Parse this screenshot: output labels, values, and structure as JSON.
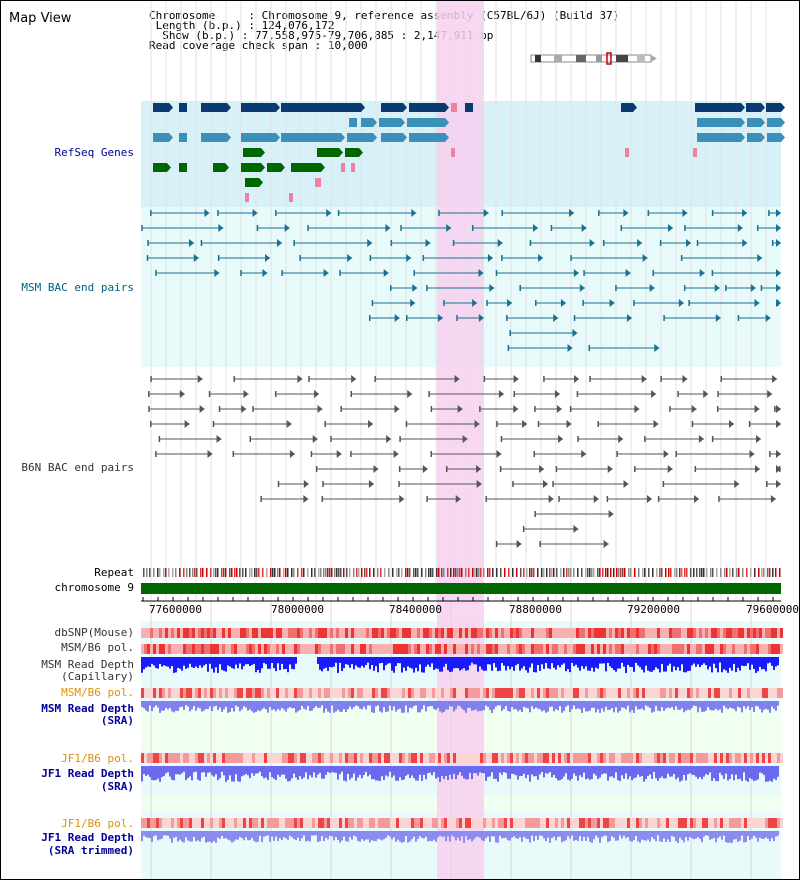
{
  "title": "Map View",
  "info": {
    "chromosome_key": "Chromosome",
    "chromosome_val": "Chromosome 9, reference assembly (C57BL/6J) (Build 37)",
    "length_key": "Length (b.p.)",
    "length_val": "124,076,172",
    "show_key": "Show (b.p.)",
    "show_val": "77,558,975-79,706,885 : 2,147,911 bp",
    "span_key": "Read coverage check span",
    "span_val": "10,000"
  },
  "tracks": {
    "refseq": "RefSeq Genes",
    "msm_bac": "MSM BAC end pairs",
    "b6n_bac": "B6N BAC end pairs",
    "repeat": "Repeat",
    "chromosome": "chromosome 9",
    "dbsnp": "dbSNP(Mouse)",
    "msm_b6_pol_1": "MSM/B6 pol.",
    "msm_read_depth_cap_1": "MSM Read Depth",
    "msm_read_depth_cap_2": "(Capillary)",
    "msm_b6_pol_2": "MSM/B6 pol.",
    "msm_read_depth_sra_1": "MSM Read Depth",
    "msm_read_depth_sra_2": "(SRA)",
    "jf1_b6_pol_1": "JF1/B6 pol.",
    "jf1_read_depth_sra_1": "JF1 Read Depth",
    "jf1_read_depth_sra_2": "(SRA)",
    "jf1_b6_pol_2": "JF1/B6 pol.",
    "jf1_read_depth_trim_1": "JF1 Read Depth",
    "jf1_read_depth_trim_2": "(SRA trimmed)"
  },
  "axis": {
    "ticks": [
      "77600000",
      "78000000",
      "78400000",
      "78800000",
      "79200000",
      "79600000"
    ]
  },
  "colors": {
    "refseq_bg": "#d8f0f8",
    "highlight": "#f8d0f0",
    "gene_dark": "#0a3a70",
    "gene_mid": "#3a90b8",
    "gene_green": "#006600",
    "msm_line": "#1a7090",
    "b6n_line": "#555555",
    "chromosome": "#006600"
  }
}
